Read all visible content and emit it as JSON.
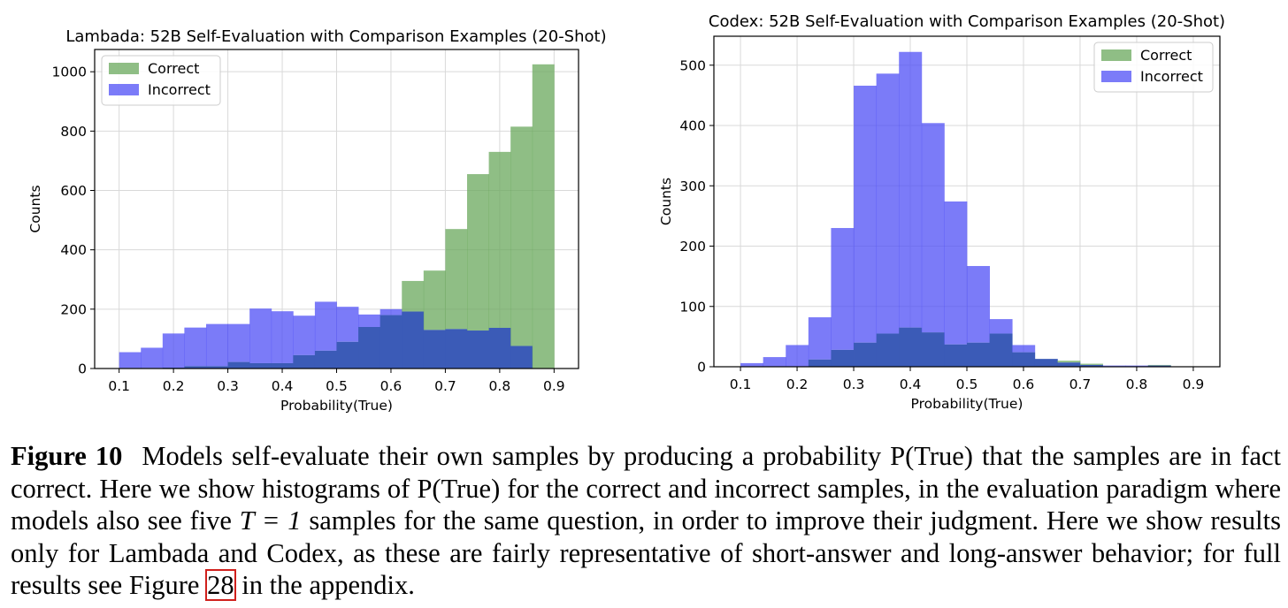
{
  "chart_data": [
    {
      "type": "histogram",
      "title": "Lambada: 52B Self-Evaluation with Comparison Examples (20-Shot)",
      "xlabel": "Probability(True)",
      "ylabel": "Counts",
      "xlim": [
        0.055,
        0.945
      ],
      "ylim": [
        0,
        1075
      ],
      "xticks": [
        0.1,
        0.2,
        0.3,
        0.4,
        0.5,
        0.6,
        0.7,
        0.8,
        0.9
      ],
      "yticks": [
        0,
        200,
        400,
        600,
        800,
        1000
      ],
      "grid": true,
      "legend_position": "top-left",
      "bin_edges": [
        0.1,
        0.14,
        0.18,
        0.22,
        0.26,
        0.3,
        0.34,
        0.38,
        0.42,
        0.46,
        0.5,
        0.54,
        0.58,
        0.62,
        0.66,
        0.7,
        0.74,
        0.78,
        0.82,
        0.86,
        0.9
      ],
      "series": [
        {
          "name": "Correct",
          "color": "#69a85c",
          "values": [
            2,
            2,
            3,
            8,
            8,
            22,
            18,
            18,
            45,
            60,
            90,
            140,
            180,
            295,
            330,
            470,
            655,
            730,
            815,
            1025
          ]
        },
        {
          "name": "Incorrect",
          "color": "#4f4ff5",
          "values": [
            55,
            70,
            118,
            138,
            150,
            150,
            202,
            193,
            178,
            225,
            208,
            182,
            200,
            192,
            130,
            133,
            128,
            137,
            76,
            0
          ]
        }
      ],
      "overlap_color": "#3b5bb7"
    },
    {
      "type": "histogram",
      "title": "Codex: 52B Self-Evaluation with Comparison Examples (20-Shot)",
      "xlabel": "Probability(True)",
      "ylabel": "Counts",
      "xlim": [
        0.053,
        0.947
      ],
      "ylim": [
        0,
        548
      ],
      "xticks": [
        0.1,
        0.2,
        0.3,
        0.4,
        0.5,
        0.6,
        0.7,
        0.8,
        0.9
      ],
      "yticks": [
        0,
        100,
        200,
        300,
        400,
        500
      ],
      "grid": true,
      "legend_position": "top-right",
      "bin_edges": [
        0.1,
        0.14,
        0.18,
        0.22,
        0.26,
        0.3,
        0.34,
        0.38,
        0.42,
        0.46,
        0.5,
        0.54,
        0.58,
        0.62,
        0.66,
        0.7,
        0.74,
        0.78,
        0.82,
        0.86,
        0.9
      ],
      "series": [
        {
          "name": "Correct",
          "color": "#69a85c",
          "values": [
            0,
            0,
            0,
            12,
            28,
            40,
            55,
            65,
            57,
            37,
            40,
            55,
            24,
            13,
            10,
            5,
            0,
            0,
            3,
            0
          ]
        },
        {
          "name": "Incorrect",
          "color": "#4f4ff5",
          "values": [
            6,
            16,
            36,
            82,
            230,
            466,
            486,
            522,
            404,
            274,
            167,
            79,
            36,
            13,
            7,
            3,
            2,
            2,
            2,
            0
          ]
        }
      ],
      "overlap_color": "#3b5bb7"
    }
  ],
  "caption": {
    "label": "Figure 10",
    "text_1": "Models self-evaluate their own samples by producing a probability P(True) that the samples are in fact correct. Here we show histograms of P(True) for the correct and incorrect samples, in the evaluation paradigm where models also see five ",
    "math": "T = 1",
    "text_2": " samples for the same question, in order to improve their judgment. Here we show results only for Lambada and Codex, as these are fairly representative of short-answer and long-answer behavior; for full results see Figure ",
    "ref": "28",
    "text_3": " in the appendix."
  }
}
